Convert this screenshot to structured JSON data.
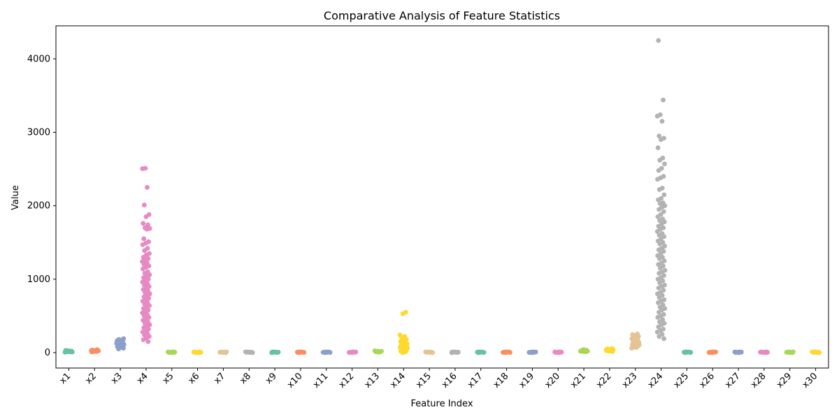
{
  "chart_data": {
    "type": "scatter",
    "title": "Comparative Analysis of Feature Statistics",
    "xlabel": "Feature Index",
    "ylabel": "Value",
    "ylim": [
      -210,
      4450
    ],
    "yticks": [
      0,
      1000,
      2000,
      3000,
      4000
    ],
    "grid": false,
    "legend": "none",
    "categories": [
      "x1",
      "x2",
      "x3",
      "x4",
      "x5",
      "x6",
      "x7",
      "x8",
      "x9",
      "x10",
      "x11",
      "x12",
      "x13",
      "x14",
      "x15",
      "x16",
      "x17",
      "x18",
      "x19",
      "x20",
      "x21",
      "x22",
      "x23",
      "x24",
      "x25",
      "x26",
      "x27",
      "x28",
      "x29",
      "x30"
    ],
    "palette": [
      "#66c2a5",
      "#fc8d62",
      "#8da0cb",
      "#e78ac3",
      "#a6d854",
      "#ffd92f",
      "#e5c494",
      "#b3b3b3"
    ],
    "series": [
      {
        "category": "x1",
        "values": [
          5,
          10,
          15,
          20,
          25,
          30,
          18,
          12,
          8,
          22,
          28,
          14
        ]
      },
      {
        "category": "x2",
        "values": [
          10,
          15,
          20,
          25,
          30,
          35,
          40,
          22,
          28,
          18,
          12,
          32
        ]
      },
      {
        "category": "x3",
        "values": [
          50,
          60,
          70,
          80,
          90,
          100,
          110,
          120,
          130,
          140,
          150,
          160,
          170,
          180,
          190,
          75,
          95,
          105,
          115,
          125,
          135,
          145,
          65,
          85
        ]
      },
      {
        "category": "x4",
        "values": [
          2510,
          2505,
          2250,
          2010,
          1880,
          1850,
          1760,
          1740,
          1700,
          1690,
          1680,
          1550,
          1510,
          1490,
          1470,
          1420,
          1390,
          1350,
          1330,
          1300,
          1280,
          1260,
          1240,
          1220,
          1200,
          1180,
          1160,
          1140,
          1100,
          1080,
          1060,
          1040,
          1020,
          1000,
          980,
          960,
          940,
          920,
          900,
          880,
          860,
          840,
          820,
          800,
          780,
          760,
          740,
          720,
          700,
          680,
          660,
          640,
          620,
          600,
          580,
          560,
          540,
          520,
          500,
          480,
          460,
          440,
          420,
          400,
          380,
          360,
          340,
          320,
          300,
          280,
          260,
          240,
          220,
          200,
          175,
          150
        ]
      },
      {
        "category": "x5",
        "values": [
          0,
          2,
          4,
          6,
          8,
          10,
          3,
          7
        ]
      },
      {
        "category": "x6",
        "values": [
          0,
          2,
          4,
          6,
          8,
          10,
          3,
          7
        ]
      },
      {
        "category": "x7",
        "values": [
          0,
          2,
          4,
          6,
          8,
          10,
          3,
          7
        ]
      },
      {
        "category": "x8",
        "values": [
          0,
          2,
          4,
          6,
          8,
          10,
          3,
          7
        ]
      },
      {
        "category": "x9",
        "values": [
          0,
          2,
          4,
          6,
          8,
          10,
          3,
          7
        ]
      },
      {
        "category": "x10",
        "values": [
          0,
          2,
          4,
          6,
          8,
          10,
          3,
          7
        ]
      },
      {
        "category": "x11",
        "values": [
          0,
          2,
          4,
          6,
          8,
          10,
          3,
          7
        ]
      },
      {
        "category": "x12",
        "values": [
          0,
          2,
          4,
          6,
          8,
          10,
          3,
          7
        ]
      },
      {
        "category": "x13",
        "values": [
          5,
          10,
          15,
          20,
          25,
          8,
          12,
          18
        ]
      },
      {
        "category": "x14",
        "values": [
          550,
          530,
          240,
          220,
          200,
          180,
          160,
          150,
          140,
          130,
          120,
          110,
          100,
          90,
          80,
          70,
          60,
          50,
          40,
          30,
          20,
          10,
          0,
          65,
          95,
          125
        ]
      },
      {
        "category": "x15",
        "values": [
          0,
          2,
          4,
          6,
          8,
          10,
          3,
          7
        ]
      },
      {
        "category": "x16",
        "values": [
          0,
          2,
          4,
          6,
          8,
          10,
          3,
          7
        ]
      },
      {
        "category": "x17",
        "values": [
          0,
          2,
          4,
          6,
          8,
          10,
          3,
          7
        ]
      },
      {
        "category": "x18",
        "values": [
          0,
          2,
          4,
          6,
          8,
          10,
          3,
          7
        ]
      },
      {
        "category": "x19",
        "values": [
          0,
          2,
          4,
          6,
          8,
          10,
          3,
          7
        ]
      },
      {
        "category": "x20",
        "values": [
          0,
          2,
          4,
          6,
          8,
          10,
          3,
          7
        ]
      },
      {
        "category": "x21",
        "values": [
          10,
          15,
          20,
          25,
          30,
          35,
          40,
          18,
          28
        ]
      },
      {
        "category": "x22",
        "values": [
          15,
          20,
          25,
          30,
          35,
          40,
          45,
          50,
          55,
          28,
          38
        ]
      },
      {
        "category": "x23",
        "values": [
          60,
          70,
          80,
          90,
          100,
          110,
          120,
          130,
          140,
          150,
          160,
          170,
          180,
          190,
          200,
          210,
          220,
          230,
          245,
          255,
          75,
          105,
          135,
          165
        ]
      },
      {
        "category": "x24",
        "values": [
          4250,
          3440,
          3240,
          3220,
          3150,
          2950,
          2920,
          2900,
          2790,
          2650,
          2620,
          2570,
          2510,
          2480,
          2400,
          2380,
          2360,
          2240,
          2220,
          2150,
          2100,
          2080,
          2040,
          2030,
          2000,
          1980,
          1950,
          1920,
          1880,
          1850,
          1820,
          1800,
          1780,
          1750,
          1720,
          1700,
          1680,
          1650,
          1620,
          1600,
          1580,
          1550,
          1520,
          1500,
          1480,
          1450,
          1420,
          1400,
          1380,
          1350,
          1320,
          1300,
          1280,
          1250,
          1220,
          1200,
          1180,
          1150,
          1120,
          1100,
          1080,
          1050,
          1020,
          1000,
          980,
          950,
          920,
          900,
          880,
          850,
          820,
          800,
          780,
          750,
          720,
          700,
          680,
          650,
          620,
          600,
          580,
          550,
          520,
          500,
          480,
          450,
          420,
          400,
          380,
          350,
          320,
          300,
          280,
          250,
          220,
          190
        ]
      },
      {
        "category": "x25",
        "values": [
          0,
          2,
          4,
          6,
          8,
          10,
          3,
          7
        ]
      },
      {
        "category": "x26",
        "values": [
          0,
          2,
          4,
          6,
          8,
          10,
          3,
          7
        ]
      },
      {
        "category": "x27",
        "values": [
          0,
          2,
          4,
          6,
          8,
          10,
          3,
          7
        ]
      },
      {
        "category": "x28",
        "values": [
          0,
          2,
          4,
          6,
          8,
          10,
          3,
          7
        ]
      },
      {
        "category": "x29",
        "values": [
          0,
          2,
          4,
          6,
          8,
          10,
          3,
          7
        ]
      },
      {
        "category": "x30",
        "values": [
          0,
          2,
          4,
          6,
          8,
          10,
          3,
          7
        ]
      }
    ]
  }
}
